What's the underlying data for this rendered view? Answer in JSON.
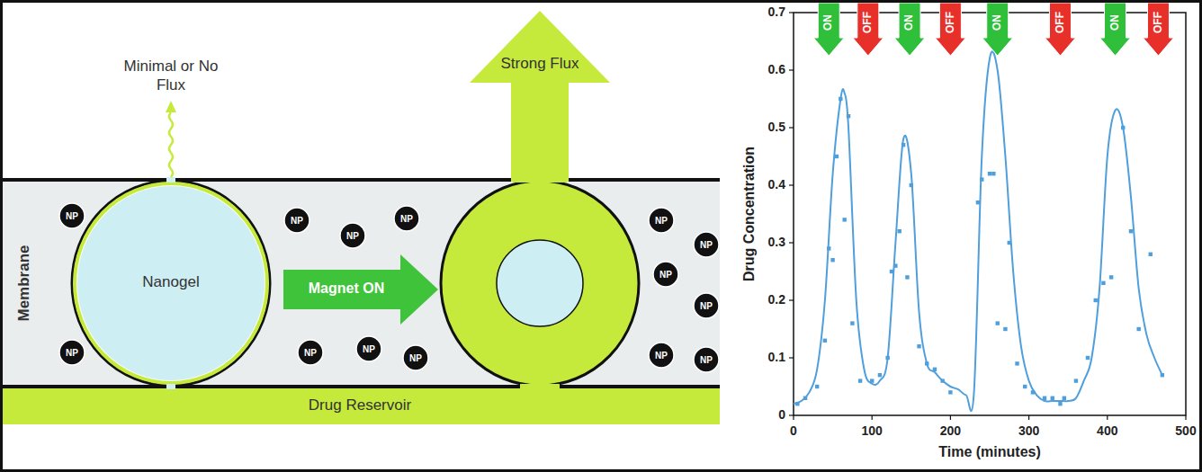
{
  "diagram": {
    "labels": {
      "minimal_flux": "Minimal or No Flux",
      "strong_flux": "Strong Flux",
      "membrane": "Membrane",
      "nanogel": "Nanogel",
      "magnet": "Magnet ON",
      "reservoir": "Drug Reservoir",
      "nanoparticle": "NP"
    }
  },
  "chart_data": {
    "type": "line",
    "x_label": "Time (minutes)",
    "y_label": "Drug Concentration",
    "xlim": [
      0,
      500
    ],
    "xticks": [
      0,
      100,
      200,
      300,
      400,
      500
    ],
    "ylim": [
      0,
      0.7
    ],
    "yticks": [
      0,
      0.1,
      0.2,
      0.3,
      0.4,
      0.5,
      0.6,
      0.7
    ],
    "grid": false,
    "series": [
      {
        "type": "scatter",
        "marker": "square",
        "color": "#4f9fdc",
        "x": [
          5,
          15,
          30,
          40,
          45,
          50,
          55,
          60,
          65,
          70,
          75,
          85,
          100,
          110,
          120,
          125,
          130,
          135,
          140,
          145,
          150,
          160,
          170,
          180,
          190,
          200,
          235,
          240,
          250,
          255,
          260,
          270,
          275,
          285,
          295,
          305,
          320,
          330,
          340,
          345,
          360,
          375,
          385,
          395,
          405,
          420,
          430,
          440,
          455,
          470
        ],
        "values": [
          0.02,
          0.03,
          0.05,
          0.13,
          0.29,
          0.27,
          0.45,
          0.55,
          0.34,
          0.52,
          0.16,
          0.06,
          0.06,
          0.07,
          0.1,
          0.25,
          0.26,
          0.32,
          0.47,
          0.24,
          0.4,
          0.12,
          0.09,
          0.08,
          0.06,
          0.04,
          0.37,
          0.41,
          0.42,
          0.42,
          0.16,
          0.15,
          0.3,
          0.09,
          0.05,
          0.04,
          0.03,
          0.03,
          0.02,
          0.03,
          0.06,
          0.1,
          0.2,
          0.23,
          0.24,
          0.5,
          0.32,
          0.15,
          0.28,
          0.07
        ]
      },
      {
        "type": "line",
        "line_style": "solid",
        "color": "#4f9fdc",
        "x": [
          0,
          10,
          20,
          30,
          40,
          50,
          60,
          65,
          70,
          80,
          90,
          100,
          110,
          120,
          130,
          140,
          150,
          160,
          170,
          180,
          190,
          200,
          210,
          220,
          230,
          240,
          250,
          260,
          270,
          280,
          290,
          300,
          310,
          320,
          330,
          340,
          350,
          360,
          370,
          380,
          390,
          400,
          410,
          420,
          430,
          440,
          450,
          460,
          470
        ],
        "values": [
          0.02,
          0.025,
          0.04,
          0.08,
          0.2,
          0.42,
          0.55,
          0.56,
          0.5,
          0.2,
          0.08,
          0.055,
          0.06,
          0.1,
          0.3,
          0.48,
          0.42,
          0.18,
          0.09,
          0.075,
          0.06,
          0.05,
          0.045,
          0.035,
          0.04,
          0.45,
          0.62,
          0.6,
          0.45,
          0.25,
          0.12,
          0.06,
          0.035,
          0.025,
          0.025,
          0.025,
          0.025,
          0.03,
          0.06,
          0.1,
          0.22,
          0.45,
          0.53,
          0.5,
          0.38,
          0.22,
          0.14,
          0.1,
          0.07
        ]
      }
    ],
    "annotations": [
      {
        "text": "ON",
        "x": 45,
        "color": "#2fbf3a"
      },
      {
        "text": "OFF",
        "x": 95,
        "color": "#e8302a"
      },
      {
        "text": "ON",
        "x": 148,
        "color": "#2fbf3a"
      },
      {
        "text": "OFF",
        "x": 200,
        "color": "#e8302a"
      },
      {
        "text": "ON",
        "x": 260,
        "color": "#2fbf3a"
      },
      {
        "text": "OFF",
        "x": 340,
        "color": "#e8302a"
      },
      {
        "text": "ON",
        "x": 410,
        "color": "#2fbf3a"
      },
      {
        "text": "OFF",
        "x": 465,
        "color": "#e8302a"
      }
    ]
  }
}
